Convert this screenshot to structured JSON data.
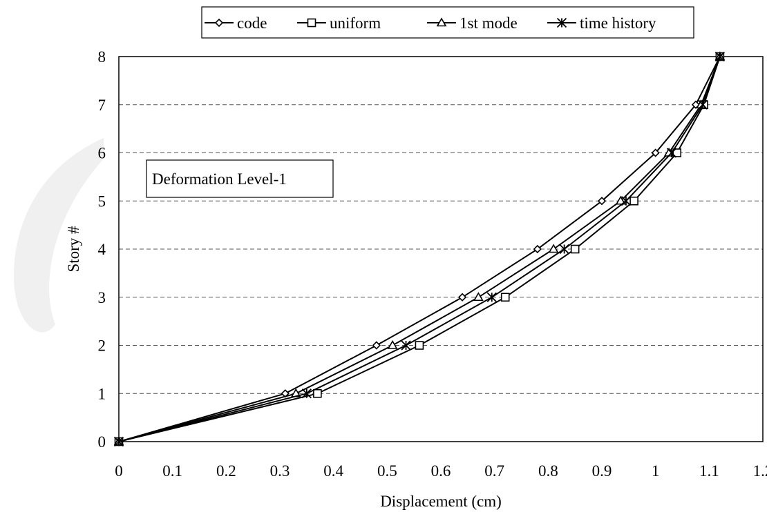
{
  "chart_data": {
    "type": "line",
    "orientation": "horizontal-profile",
    "xlabel": "Displacement (cm)",
    "ylabel": "Story #",
    "xlim": [
      0,
      1.2
    ],
    "ylim": [
      0,
      8
    ],
    "x_ticks": [
      "0",
      "0.1",
      "0.2",
      "0.3",
      "0.4",
      "0.5",
      "0.6",
      "0.7",
      "0.8",
      "0.9",
      "1",
      "1.1",
      "1.2"
    ],
    "y_ticks": [
      "0",
      "1",
      "2",
      "3",
      "4",
      "5",
      "6",
      "7",
      "8"
    ],
    "grid": "horizontal dashed",
    "legend_position": "top",
    "annotation": "Deformation Level-1",
    "y": [
      0,
      1,
      2,
      3,
      4,
      5,
      6,
      7,
      8
    ],
    "series": [
      {
        "name": "code",
        "marker": "diamond",
        "x": [
          0,
          0.31,
          0.48,
          0.64,
          0.78,
          0.9,
          1.0,
          1.075,
          1.12
        ]
      },
      {
        "name": "uniform",
        "marker": "square",
        "x": [
          0,
          0.37,
          0.56,
          0.72,
          0.85,
          0.96,
          1.04,
          1.09,
          1.12
        ]
      },
      {
        "name": "1st mode",
        "marker": "triangle",
        "x": [
          0,
          0.33,
          0.51,
          0.67,
          0.81,
          0.935,
          1.025,
          1.085,
          1.12
        ]
      },
      {
        "name": "time history",
        "marker": "asterisk",
        "x": [
          0,
          0.35,
          0.535,
          0.695,
          0.83,
          0.945,
          1.03,
          1.088,
          1.12
        ]
      }
    ]
  }
}
